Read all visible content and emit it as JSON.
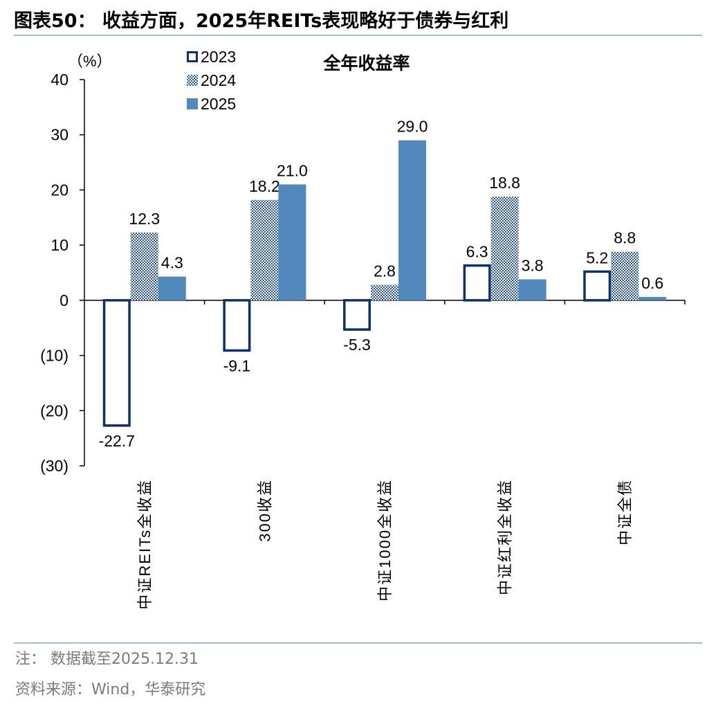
{
  "figure": {
    "title": "图表50： 收益方面，2025年REITs表现略好于债券与红利",
    "note": "注： 数据截至2025.12.31",
    "source": "资料来源：Wind，华泰研究"
  },
  "colors": {
    "series_2023": "#0e2f6e",
    "series_2024": "#2b56a0",
    "series_2025": "#5289bd",
    "axis": "#000000",
    "rule": "#a7bcd2"
  },
  "chart_data": {
    "type": "bar",
    "title": "全年收益率",
    "ylabel": "（%）",
    "ylim": [
      -30,
      40
    ],
    "yticks": [
      {
        "value": 40,
        "label": "40"
      },
      {
        "value": 30,
        "label": "30"
      },
      {
        "value": 20,
        "label": "20"
      },
      {
        "value": 10,
        "label": "10"
      },
      {
        "value": 0,
        "label": "0"
      },
      {
        "value": -10,
        "label": "(10)"
      },
      {
        "value": -20,
        "label": "(20)"
      },
      {
        "value": -30,
        "label": "(30)"
      }
    ],
    "categories": [
      "中证REITs全收益",
      "300收益",
      "中证1000全收益",
      "中证红利全收益",
      "中证全债"
    ],
    "legend_position": "top-left",
    "grid": false,
    "series": [
      {
        "name": "2023",
        "style": "outline",
        "values": [
          -22.7,
          -9.1,
          -5.3,
          6.3,
          5.2
        ],
        "labels": [
          "-22.7",
          "-9.1",
          "-5.3",
          "6.3",
          "5.2"
        ]
      },
      {
        "name": "2024",
        "style": "dotted",
        "values": [
          12.3,
          18.2,
          2.8,
          18.8,
          8.8
        ],
        "labels": [
          "12.3",
          "18.2",
          "2.8",
          "18.8",
          "8.8"
        ]
      },
      {
        "name": "2025",
        "style": "solid",
        "values": [
          4.3,
          21.0,
          29.0,
          3.8,
          0.6
        ],
        "labels": [
          "4.3",
          "21.0",
          "29.0",
          "3.8",
          "0.6"
        ]
      }
    ]
  }
}
